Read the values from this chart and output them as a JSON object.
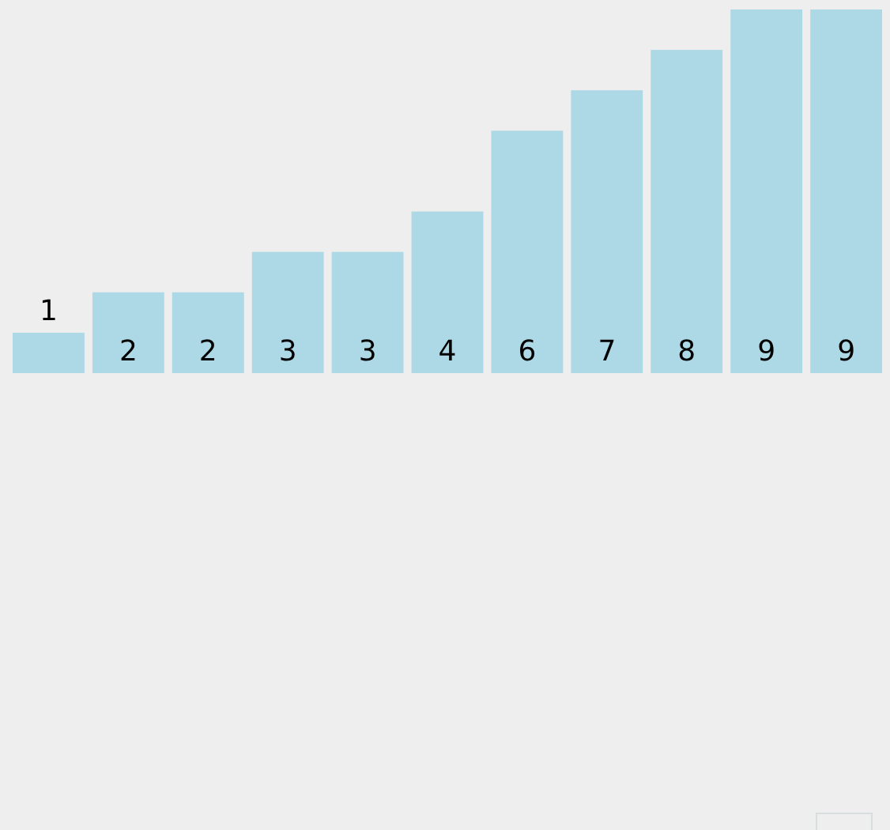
{
  "chart_data": {
    "type": "bar",
    "categories": [
      null,
      null,
      null,
      null,
      null,
      null,
      null,
      null,
      null,
      null,
      null
    ],
    "values": [
      1,
      2,
      2,
      3,
      3,
      4,
      6,
      7,
      8,
      9,
      9
    ],
    "color": "#add8e6",
    "data_labels": true
  }
}
